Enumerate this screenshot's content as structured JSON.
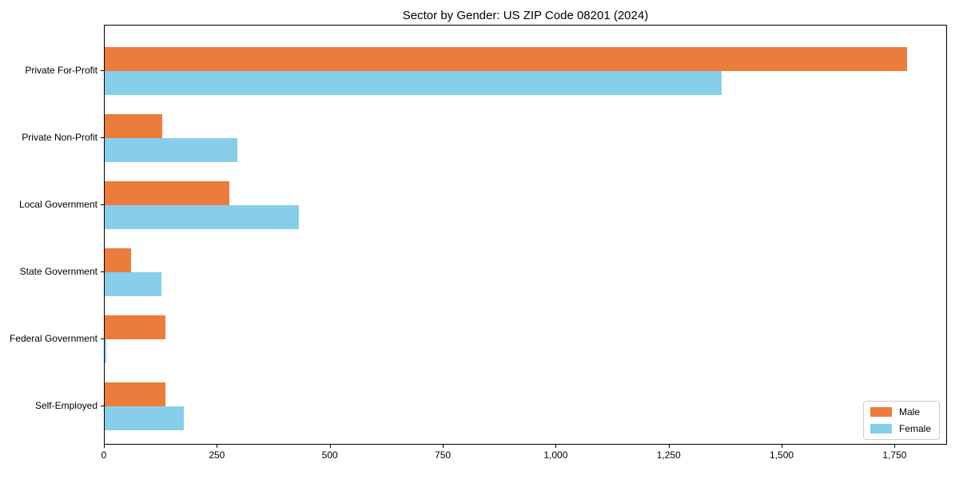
{
  "chart_data": {
    "type": "bar",
    "orientation": "horizontal",
    "title": "Sector by Gender: US ZIP Code 08201 (2024)",
    "categories": [
      "Private For-Profit",
      "Private Non-Profit",
      "Local Government",
      "State Government",
      "Federal Government",
      "Self-Employed"
    ],
    "series": [
      {
        "name": "Male",
        "color": "#eb7c3c",
        "values": [
          1776,
          128,
          276,
          58,
          134,
          134
        ]
      },
      {
        "name": "Female",
        "color": "#87ceeb",
        "values": [
          1365,
          294,
          430,
          126,
          3,
          175
        ]
      }
    ],
    "xlim": [
      0,
      1866
    ],
    "xticks": [
      0,
      250,
      500,
      750,
      1000,
      1250,
      1500,
      1750
    ],
    "xtick_labels": [
      "0",
      "250",
      "500",
      "750",
      "1,000",
      "1,250",
      "1,500",
      "1,750"
    ],
    "xlabel": "",
    "ylabel": "",
    "grid": false,
    "legend_position": "lower right"
  }
}
